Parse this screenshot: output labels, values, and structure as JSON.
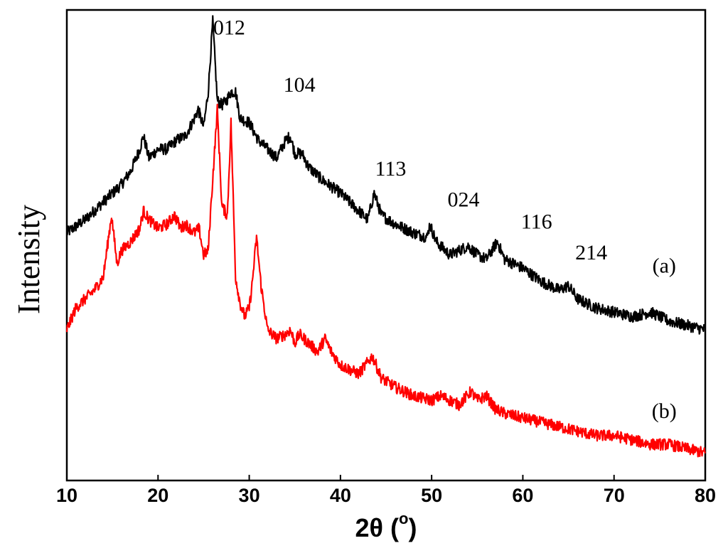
{
  "chart_data": {
    "type": "line",
    "xlabel": "2θ (°)",
    "xlabel_main": "2θ (",
    "xlabel_sup": "o",
    "xlabel_close": ")",
    "ylabel": "Intensity",
    "xlim": [
      10,
      80
    ],
    "ylim": [
      0,
      100
    ],
    "grid": false,
    "x_ticks": [
      10,
      20,
      30,
      40,
      50,
      60,
      70,
      80
    ],
    "series": [
      {
        "name": "(a)",
        "color": "#000000",
        "x": [
          10,
          12,
          14,
          16,
          17,
          18,
          18.4,
          19,
          20,
          21,
          22,
          23,
          24,
          24.4,
          25,
          25.5,
          26,
          26.5,
          27,
          27.5,
          28,
          28.5,
          29,
          30,
          31,
          32,
          33,
          34,
          34.5,
          35,
          35.8,
          36.5,
          38,
          40,
          42,
          43,
          43.7,
          44.5,
          46,
          48,
          49.5,
          49.8,
          50.5,
          52,
          54,
          55,
          56,
          57.2,
          58,
          60,
          62,
          64,
          65,
          66,
          68,
          70,
          72,
          74,
          76,
          78,
          80
        ],
        "y": [
          52,
          55,
          59,
          63,
          66,
          71,
          74,
          69,
          71,
          71,
          73,
          74,
          78,
          80,
          76,
          84,
          100,
          82,
          81,
          82,
          84,
          84,
          78,
          77,
          73,
          71,
          69,
          73,
          74,
          70,
          70,
          67,
          64,
          61,
          57,
          55,
          61,
          56,
          54,
          52,
          51,
          54,
          50,
          47,
          49,
          47,
          46,
          50,
          46,
          44,
          41,
          39,
          40,
          37,
          35,
          34,
          33,
          34,
          32,
          31,
          30
        ]
      },
      {
        "name": "(b)",
        "color": "#ff0000",
        "x": [
          10,
          11,
          12,
          13,
          14,
          14.9,
          15.5,
          16,
          17,
          18,
          18.4,
          19,
          20,
          21,
          21.8,
          22.5,
          23,
          24,
          24.5,
          25,
          25.5,
          25.8,
          26.5,
          27,
          27.3,
          27.6,
          28,
          28.5,
          29,
          29.5,
          30,
          30.3,
          30.8,
          31.3,
          32,
          33,
          34,
          34.5,
          35,
          35.5,
          36.5,
          37.5,
          38.3,
          39,
          40,
          42,
          43.5,
          44.5,
          46,
          48,
          50,
          51,
          52,
          53,
          54.3,
          55,
          56,
          57,
          58,
          60,
          62,
          64,
          66,
          68,
          70,
          72,
          74,
          76,
          78,
          80
        ],
        "y": [
          30,
          35,
          37,
          39,
          42,
          56,
          45,
          48,
          50,
          53,
          57,
          55,
          53,
          54,
          56,
          53,
          54,
          52,
          53,
          47,
          48,
          58,
          80,
          58,
          57,
          56,
          77,
          42,
          36,
          33,
          35,
          40,
          51,
          40,
          30,
          28,
          29,
          30,
          27,
          29,
          27,
          25,
          28,
          25,
          22,
          20,
          24,
          19,
          17,
          15,
          14,
          15,
          14,
          13,
          16,
          14,
          15,
          12,
          11,
          10,
          9,
          8,
          7,
          6,
          6,
          5,
          4,
          4,
          3,
          2
        ]
      }
    ],
    "peak_labels": [
      {
        "text": "012",
        "x": 27.8,
        "y": 97
      },
      {
        "text": "104",
        "x": 35.5,
        "y": 84
      },
      {
        "text": "113",
        "x": 45.5,
        "y": 65
      },
      {
        "text": "024",
        "x": 53.5,
        "y": 58
      },
      {
        "text": "116",
        "x": 61.5,
        "y": 53
      },
      {
        "text": "214",
        "x": 67.5,
        "y": 46
      }
    ],
    "series_labels": [
      {
        "text": "(a)",
        "x": 75.5,
        "y": 43
      },
      {
        "text": "(b)",
        "x": 75.5,
        "y": 10
      }
    ]
  }
}
